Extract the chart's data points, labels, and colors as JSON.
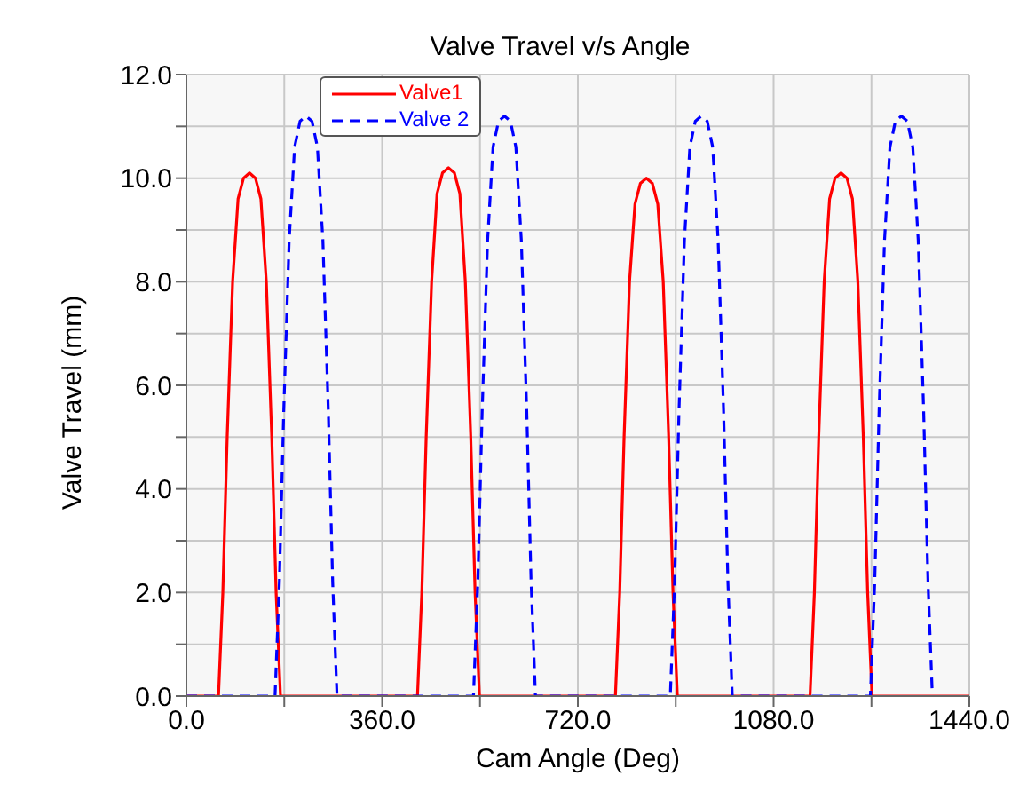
{
  "chart_data": {
    "type": "line",
    "title": "Valve Travel v/s Angle",
    "xlabel": "Cam Angle (Deg)",
    "ylabel": "Valve Travel (mm)",
    "xlim": [
      0,
      1440
    ],
    "xticks": [
      {
        "value": 0,
        "label": "0.0"
      },
      {
        "value": 180,
        "label": null
      },
      {
        "value": 360,
        "label": "360.0"
      },
      {
        "value": 540,
        "label": null
      },
      {
        "value": 720,
        "label": "720.0"
      },
      {
        "value": 900,
        "label": null
      },
      {
        "value": 1080,
        "label": "1080.0"
      },
      {
        "value": 1260,
        "label": null
      },
      {
        "value": 1440,
        "label": "1440.0"
      }
    ],
    "ylim": [
      0,
      12
    ],
    "yticks": [
      {
        "value": 0,
        "label": "0.0"
      },
      {
        "value": 1,
        "label": null
      },
      {
        "value": 2,
        "label": "2.0"
      },
      {
        "value": 3,
        "label": null
      },
      {
        "value": 4,
        "label": "4.0"
      },
      {
        "value": 5,
        "label": null
      },
      {
        "value": 6,
        "label": "6.0"
      },
      {
        "value": 7,
        "label": null
      },
      {
        "value": 8,
        "label": "8.0"
      },
      {
        "value": 9,
        "label": null
      },
      {
        "value": 10,
        "label": "10.0"
      },
      {
        "value": 11,
        "label": null
      },
      {
        "value": 12,
        "label": "12.0"
      }
    ],
    "grid": true,
    "legend": "top left",
    "marker": "none",
    "series": [
      {
        "name": "Valve1",
        "color": "#ff0000",
        "line_style": "solid",
        "x": [
          0,
          59,
          67,
          75,
          85,
          95,
          105,
          116,
          127,
          137,
          147,
          157,
          165,
          173,
          425,
          433,
          441,
          451,
          461,
          471,
          482,
          493,
          503,
          513,
          523,
          531,
          539,
          789,
          797,
          805,
          815,
          825,
          835,
          846,
          857,
          867,
          877,
          887,
          895,
          903,
          1147,
          1155,
          1163,
          1173,
          1183,
          1193,
          1204,
          1215,
          1225,
          1235,
          1245,
          1253,
          1261,
          1440
        ],
        "values": [
          0,
          0,
          2.0,
          5.0,
          8.0,
          9.6,
          10.0,
          10.1,
          10.0,
          9.6,
          8.0,
          5.0,
          2.0,
          0,
          0,
          2.0,
          5.0,
          8.0,
          9.7,
          10.1,
          10.2,
          10.1,
          9.7,
          8.0,
          5.0,
          2.0,
          0,
          0,
          2.0,
          5.0,
          8.0,
          9.5,
          9.9,
          10.0,
          9.9,
          9.5,
          8.0,
          5.0,
          2.0,
          0,
          0,
          2.0,
          5.0,
          8.0,
          9.6,
          10.0,
          10.1,
          10.0,
          9.6,
          8.0,
          5.0,
          2.0,
          0,
          0
        ]
      },
      {
        "name": "Valve 2",
        "color": "#0000ff",
        "line_style": "dashed",
        "x": [
          0,
          163,
          171,
          179,
          189,
          199,
          209,
          220,
          231,
          241,
          251,
          261,
          269,
          277,
          528,
          536,
          544,
          554,
          564,
          574,
          585,
          596,
          606,
          616,
          626,
          634,
          642,
          890,
          898,
          906,
          916,
          926,
          936,
          947,
          958,
          968,
          978,
          988,
          996,
          1004,
          1258,
          1266,
          1274,
          1284,
          1294,
          1304,
          1315,
          1326,
          1336,
          1346,
          1356,
          1364,
          1372
        ],
        "values": [
          0,
          0,
          2.2,
          5.5,
          8.8,
          10.6,
          11.1,
          11.2,
          11.1,
          10.6,
          8.8,
          5.5,
          2.2,
          0,
          0,
          2.2,
          5.5,
          8.8,
          10.6,
          11.1,
          11.2,
          11.1,
          10.6,
          8.8,
          5.5,
          2.2,
          0,
          0,
          2.2,
          5.5,
          8.8,
          10.6,
          11.1,
          11.2,
          11.1,
          10.6,
          8.8,
          5.5,
          2.2,
          0,
          0,
          2.2,
          5.5,
          8.8,
          10.6,
          11.1,
          11.2,
          11.1,
          10.6,
          8.8,
          5.5,
          2.2,
          0
        ]
      }
    ]
  }
}
